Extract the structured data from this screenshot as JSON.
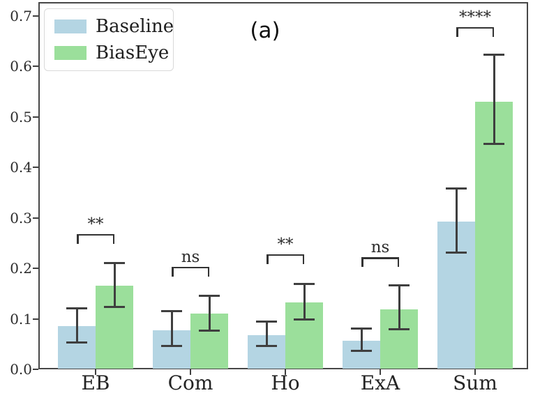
{
  "title": "(a)",
  "legend": {
    "items": [
      {
        "label": "Baseline",
        "color": "#b4d5e3"
      },
      {
        "label": "BiasEye",
        "color": "#9bdf9b"
      }
    ]
  },
  "colors": {
    "baseline_bar": "#b4d5e3",
    "biaseye_bar": "#9bdf9b",
    "error_bar": "#3f3f3f",
    "axis": "#474747",
    "text": "#242424"
  },
  "chart_data": {
    "type": "bar",
    "title": "(a)",
    "categories": [
      "EB",
      "Com",
      "Ho",
      "ExA",
      "Sum"
    ],
    "series": [
      {
        "name": "Baseline",
        "color": "#b4d5e3",
        "values": [
          0.085,
          0.077,
          0.068,
          0.057,
          0.292
        ],
        "err_low": [
          0.053,
          0.046,
          0.046,
          0.037,
          0.231
        ],
        "err_high": [
          0.121,
          0.115,
          0.095,
          0.081,
          0.358
        ]
      },
      {
        "name": "BiasEye",
        "color": "#9bdf9b",
        "values": [
          0.165,
          0.11,
          0.132,
          0.118,
          0.53
        ],
        "err_low": [
          0.124,
          0.077,
          0.099,
          0.079,
          0.446
        ],
        "err_high": [
          0.211,
          0.146,
          0.169,
          0.166,
          0.623
        ]
      }
    ],
    "significance": [
      {
        "label": "**",
        "y": 0.268
      },
      {
        "label": "ns",
        "y": 0.203
      },
      {
        "label": "**",
        "y": 0.228
      },
      {
        "label": "ns",
        "y": 0.222
      },
      {
        "label": "****",
        "y": 0.678
      }
    ],
    "xlabel": "",
    "ylabel": "",
    "ylim": [
      0.0,
      0.727
    ],
    "yticks": [
      0.0,
      0.1,
      0.2,
      0.3,
      0.4,
      0.5,
      0.6,
      0.7
    ],
    "grid": false,
    "legend_position": "upper left"
  }
}
